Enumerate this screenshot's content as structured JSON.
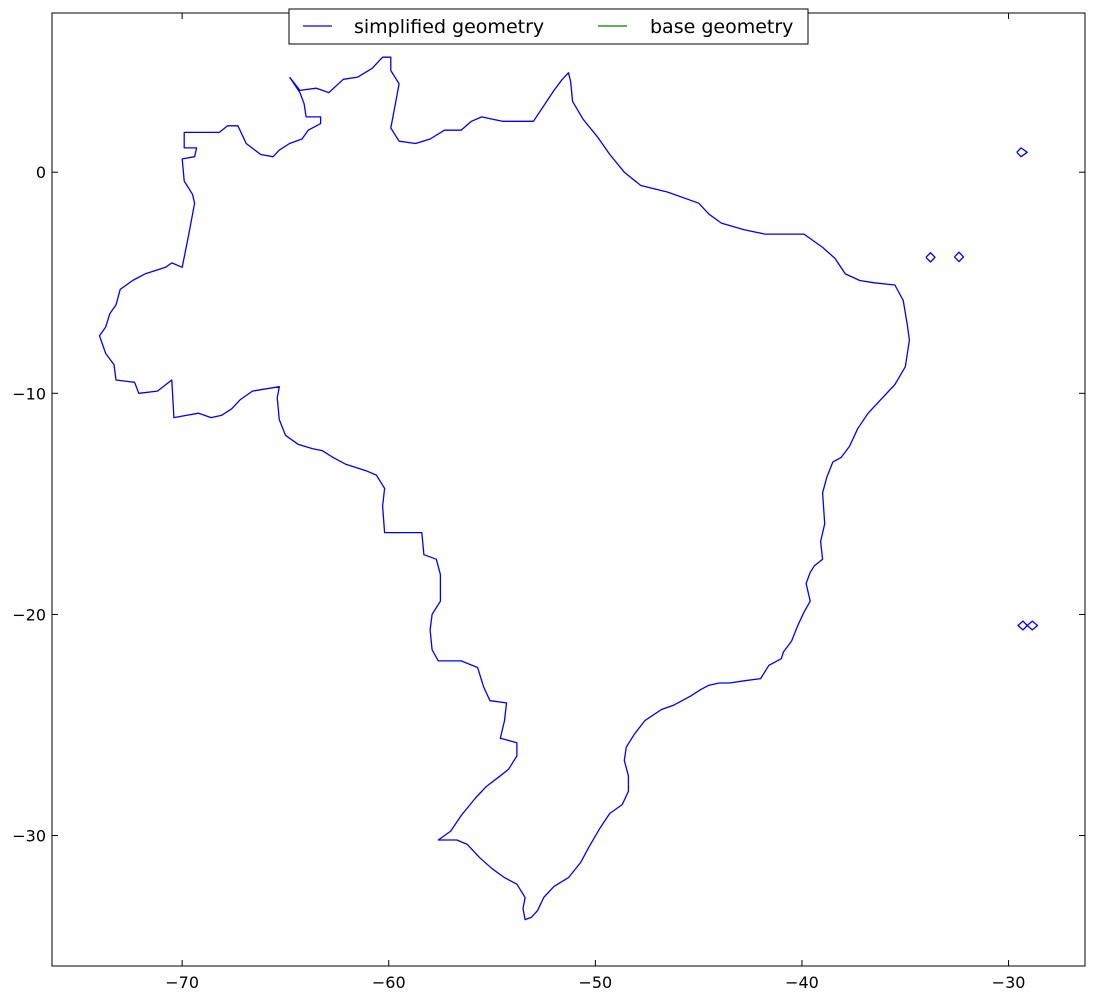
{
  "chart_data": {
    "type": "line",
    "title": "",
    "xlabel": "",
    "ylabel": "",
    "xlim": [
      -76.3,
      -26.3
    ],
    "ylim": [
      -35.9,
      7.2
    ],
    "xticks": [
      -70,
      -60,
      -50,
      -40,
      -30
    ],
    "yticks": [
      0,
      -10,
      -20,
      -30
    ],
    "xtick_labels": [
      "−70",
      "−60",
      "−50",
      "−40",
      "−30"
    ],
    "ytick_labels": [
      "0",
      "−10",
      "−20",
      "−30"
    ],
    "grid": false,
    "legend": {
      "placement": "top-center",
      "ncol": 2
    },
    "series": [
      {
        "name": "simplified geometry",
        "color": "#0000ff",
        "paths": [
          [
            [
              -64.8,
              4.3
            ],
            [
              -64.3,
              3.7
            ],
            [
              -63.5,
              3.8
            ],
            [
              -62.9,
              3.6
            ],
            [
              -62.2,
              4.2
            ],
            [
              -61.5,
              4.3
            ],
            [
              -60.8,
              4.7
            ],
            [
              -60.3,
              5.2
            ],
            [
              -59.9,
              5.2
            ],
            [
              -59.9,
              4.6
            ],
            [
              -59.5,
              4.0
            ],
            [
              -59.7,
              3.0
            ],
            [
              -59.9,
              2.0
            ],
            [
              -59.5,
              1.4
            ],
            [
              -58.7,
              1.3
            ],
            [
              -58.0,
              1.5
            ],
            [
              -57.3,
              1.9
            ],
            [
              -56.5,
              1.9
            ],
            [
              -56.0,
              2.3
            ],
            [
              -55.5,
              2.5
            ],
            [
              -55.0,
              2.4
            ],
            [
              -54.5,
              2.3
            ],
            [
              -53.8,
              2.3
            ],
            [
              -53.0,
              2.3
            ],
            [
              -52.5,
              3.0
            ],
            [
              -52.0,
              3.7
            ],
            [
              -51.6,
              4.2
            ],
            [
              -51.3,
              4.5
            ],
            [
              -51.2,
              4.1
            ],
            [
              -51.1,
              3.2
            ],
            [
              -50.6,
              2.4
            ],
            [
              -49.9,
              1.6
            ],
            [
              -49.3,
              0.8
            ],
            [
              -48.6,
              0.0
            ],
            [
              -47.8,
              -0.6
            ],
            [
              -46.5,
              -0.9
            ],
            [
              -45.0,
              -1.4
            ],
            [
              -44.5,
              -1.9
            ],
            [
              -43.9,
              -2.3
            ],
            [
              -42.8,
              -2.6
            ],
            [
              -41.8,
              -2.8
            ],
            [
              -40.8,
              -2.8
            ],
            [
              -39.9,
              -2.8
            ],
            [
              -39.0,
              -3.4
            ],
            [
              -38.4,
              -3.9
            ],
            [
              -37.9,
              -4.6
            ],
            [
              -37.2,
              -4.9
            ],
            [
              -36.5,
              -5.0
            ],
            [
              -35.5,
              -5.1
            ],
            [
              -35.1,
              -5.8
            ],
            [
              -34.9,
              -6.9
            ],
            [
              -34.8,
              -7.6
            ],
            [
              -35.0,
              -8.8
            ],
            [
              -35.5,
              -9.6
            ],
            [
              -36.2,
              -10.3
            ],
            [
              -36.8,
              -10.9
            ],
            [
              -37.3,
              -11.6
            ],
            [
              -37.7,
              -12.4
            ],
            [
              -38.1,
              -12.9
            ],
            [
              -38.5,
              -13.1
            ],
            [
              -38.8,
              -13.8
            ],
            [
              -39.0,
              -14.5
            ],
            [
              -38.9,
              -15.9
            ],
            [
              -39.1,
              -16.7
            ],
            [
              -39.0,
              -17.5
            ],
            [
              -39.4,
              -17.8
            ],
            [
              -39.6,
              -18.1
            ],
            [
              -39.8,
              -18.6
            ],
            [
              -39.6,
              -19.4
            ],
            [
              -39.9,
              -19.9
            ],
            [
              -40.2,
              -20.5
            ],
            [
              -40.5,
              -21.2
            ],
            [
              -40.9,
              -21.7
            ],
            [
              -41.0,
              -22.0
            ],
            [
              -41.6,
              -22.3
            ],
            [
              -42.0,
              -22.9
            ],
            [
              -42.8,
              -23.0
            ],
            [
              -43.5,
              -23.1
            ],
            [
              -44.0,
              -23.1
            ],
            [
              -44.5,
              -23.2
            ],
            [
              -44.9,
              -23.4
            ],
            [
              -45.4,
              -23.7
            ],
            [
              -46.2,
              -24.1
            ],
            [
              -46.8,
              -24.3
            ],
            [
              -47.6,
              -24.8
            ],
            [
              -48.1,
              -25.4
            ],
            [
              -48.5,
              -26.0
            ],
            [
              -48.6,
              -26.6
            ],
            [
              -48.4,
              -27.3
            ],
            [
              -48.4,
              -28.0
            ],
            [
              -48.7,
              -28.6
            ],
            [
              -49.3,
              -29.0
            ],
            [
              -49.8,
              -29.7
            ],
            [
              -50.3,
              -30.5
            ],
            [
              -50.7,
              -31.2
            ],
            [
              -51.3,
              -31.9
            ],
            [
              -52.0,
              -32.3
            ],
            [
              -52.5,
              -32.8
            ],
            [
              -52.8,
              -33.4
            ],
            [
              -53.1,
              -33.7
            ],
            [
              -53.4,
              -33.8
            ],
            [
              -53.5,
              -33.3
            ],
            [
              -53.4,
              -32.8
            ],
            [
              -53.8,
              -32.2
            ],
            [
              -54.4,
              -31.9
            ],
            [
              -55.0,
              -31.5
            ],
            [
              -55.6,
              -31.0
            ],
            [
              -56.2,
              -30.4
            ],
            [
              -56.7,
              -30.2
            ],
            [
              -57.6,
              -30.2
            ],
            [
              -57.0,
              -29.8
            ],
            [
              -56.5,
              -29.1
            ],
            [
              -55.8,
              -28.3
            ],
            [
              -55.3,
              -27.8
            ],
            [
              -54.6,
              -27.3
            ],
            [
              -54.2,
              -27.0
            ],
            [
              -53.8,
              -26.4
            ],
            [
              -53.8,
              -25.8
            ],
            [
              -54.6,
              -25.6
            ],
            [
              -54.4,
              -24.8
            ],
            [
              -54.3,
              -24.0
            ],
            [
              -55.1,
              -23.9
            ],
            [
              -55.4,
              -23.3
            ],
            [
              -55.7,
              -22.4
            ],
            [
              -56.5,
              -22.1
            ],
            [
              -57.6,
              -22.1
            ],
            [
              -57.9,
              -21.6
            ],
            [
              -58.0,
              -20.7
            ],
            [
              -57.9,
              -20.0
            ],
            [
              -57.5,
              -19.4
            ],
            [
              -57.5,
              -18.2
            ],
            [
              -57.7,
              -17.5
            ],
            [
              -58.3,
              -17.3
            ],
            [
              -58.4,
              -16.3
            ],
            [
              -60.2,
              -16.3
            ],
            [
              -60.3,
              -15.1
            ],
            [
              -60.2,
              -14.3
            ],
            [
              -60.6,
              -13.7
            ],
            [
              -61.1,
              -13.5
            ],
            [
              -62.1,
              -13.2
            ],
            [
              -62.7,
              -12.9
            ],
            [
              -63.2,
              -12.6
            ],
            [
              -63.7,
              -12.5
            ],
            [
              -64.4,
              -12.3
            ],
            [
              -65.0,
              -11.9
            ],
            [
              -65.3,
              -11.2
            ],
            [
              -65.4,
              -10.2
            ],
            [
              -65.3,
              -9.7
            ],
            [
              -66.6,
              -9.9
            ],
            [
              -67.2,
              -10.3
            ],
            [
              -67.6,
              -10.7
            ],
            [
              -68.1,
              -11.0
            ],
            [
              -68.6,
              -11.1
            ],
            [
              -69.2,
              -10.9
            ],
            [
              -69.8,
              -11.0
            ],
            [
              -70.4,
              -11.1
            ],
            [
              -70.5,
              -9.4
            ],
            [
              -71.2,
              -9.9
            ],
            [
              -72.1,
              -10.0
            ],
            [
              -72.3,
              -9.5
            ],
            [
              -73.2,
              -9.4
            ],
            [
              -73.3,
              -8.7
            ],
            [
              -73.7,
              -8.2
            ],
            [
              -74.0,
              -7.4
            ],
            [
              -73.7,
              -7.0
            ],
            [
              -73.5,
              -6.4
            ],
            [
              -73.2,
              -6.0
            ],
            [
              -73.0,
              -5.3
            ],
            [
              -72.4,
              -4.9
            ],
            [
              -71.8,
              -4.6
            ],
            [
              -70.8,
              -4.3
            ],
            [
              -70.5,
              -4.1
            ],
            [
              -70.0,
              -4.3
            ],
            [
              -69.7,
              -2.9
            ],
            [
              -69.4,
              -1.4
            ],
            [
              -69.5,
              -1.0
            ],
            [
              -69.9,
              -0.4
            ],
            [
              -70.0,
              0.6
            ],
            [
              -69.4,
              0.7
            ],
            [
              -69.3,
              1.1
            ],
            [
              -69.9,
              1.1
            ],
            [
              -69.9,
              1.8
            ],
            [
              -68.2,
              1.8
            ],
            [
              -67.8,
              2.1
            ],
            [
              -67.3,
              2.1
            ],
            [
              -66.9,
              1.3
            ],
            [
              -66.2,
              0.8
            ],
            [
              -65.6,
              0.7
            ],
            [
              -65.3,
              1.0
            ],
            [
              -64.8,
              1.3
            ],
            [
              -64.2,
              1.5
            ],
            [
              -63.9,
              1.9
            ],
            [
              -63.3,
              2.2
            ],
            [
              -63.3,
              2.5
            ],
            [
              -64.0,
              2.5
            ],
            [
              -64.1,
              3.1
            ],
            [
              -64.3,
              3.6
            ],
            [
              -64.8,
              4.3
            ]
          ],
          [
            [
              -29.6,
              0.9
            ],
            [
              -29.4,
              1.1
            ],
            [
              -29.1,
              0.9
            ],
            [
              -29.4,
              0.7
            ],
            [
              -29.6,
              0.9
            ]
          ],
          [
            [
              -34.0,
              -3.85
            ],
            [
              -33.78,
              -3.64
            ],
            [
              -33.56,
              -3.85
            ],
            [
              -33.78,
              -4.06
            ],
            [
              -34.0,
              -3.85
            ]
          ],
          [
            [
              -32.62,
              -3.83
            ],
            [
              -32.4,
              -3.62
            ],
            [
              -32.18,
              -3.83
            ],
            [
              -32.4,
              -4.04
            ],
            [
              -32.62,
              -3.83
            ]
          ],
          [
            [
              -29.1,
              -20.5
            ],
            [
              -29.3,
              -20.3
            ],
            [
              -29.55,
              -20.5
            ],
            [
              -29.3,
              -20.7
            ],
            [
              -29.1,
              -20.5
            ],
            [
              -28.85,
              -20.3
            ],
            [
              -28.6,
              -20.5
            ],
            [
              -28.85,
              -20.7
            ],
            [
              -29.1,
              -20.5
            ]
          ]
        ]
      },
      {
        "name": "base geometry",
        "color": "#008000",
        "paths": []
      }
    ]
  }
}
